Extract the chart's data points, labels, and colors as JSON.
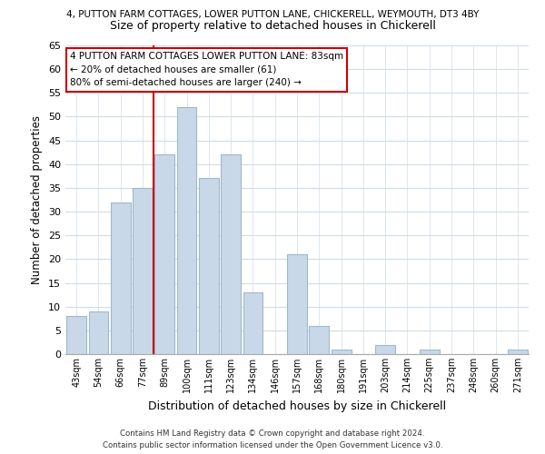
{
  "title_top": "4, PUTTON FARM COTTAGES, LOWER PUTTON LANE, CHICKERELL, WEYMOUTH, DT3 4BY",
  "title_main": "Size of property relative to detached houses in Chickerell",
  "xlabel": "Distribution of detached houses by size in Chickerell",
  "ylabel": "Number of detached properties",
  "bar_labels": [
    "43sqm",
    "54sqm",
    "66sqm",
    "77sqm",
    "89sqm",
    "100sqm",
    "111sqm",
    "123sqm",
    "134sqm",
    "146sqm",
    "157sqm",
    "168sqm",
    "180sqm",
    "191sqm",
    "203sqm",
    "214sqm",
    "225sqm",
    "237sqm",
    "248sqm",
    "260sqm",
    "271sqm"
  ],
  "bar_values": [
    8,
    9,
    32,
    35,
    42,
    52,
    37,
    42,
    13,
    0,
    21,
    6,
    1,
    0,
    2,
    0,
    1,
    0,
    0,
    0,
    1
  ],
  "bar_color": "#c8d8e8",
  "bar_edge_color": "#a0b8cc",
  "ylim": [
    0,
    65
  ],
  "yticks": [
    0,
    5,
    10,
    15,
    20,
    25,
    30,
    35,
    40,
    45,
    50,
    55,
    60,
    65
  ],
  "vline_color": "#cc0000",
  "annotation_title": "4 PUTTON FARM COTTAGES LOWER PUTTON LANE: 83sqm",
  "annotation_line2": "← 20% of detached houses are smaller (61)",
  "annotation_line3": "80% of semi-detached houses are larger (240) →",
  "footer_line1": "Contains HM Land Registry data © Crown copyright and database right 2024.",
  "footer_line2": "Contains public sector information licensed under the Open Government Licence v3.0.",
  "background_color": "#ffffff",
  "grid_color": "#d0dce8"
}
